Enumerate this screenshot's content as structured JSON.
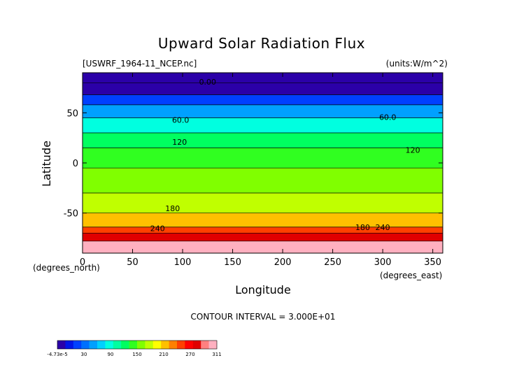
{
  "chart_data": {
    "type": "heatmap",
    "title": "Upward Solar Radiation Flux",
    "file_label": "[USWRF_1964-11_NCEP.nc]",
    "units_label": "(units:W/m^2)",
    "xlabel": "Longitude",
    "ylabel": "Latitude",
    "x_unit_label": "(degrees_east)",
    "y_unit_label": "(degrees_north)",
    "xlim": [
      0,
      360
    ],
    "ylim": [
      -90,
      90
    ],
    "x_ticks": [
      "0",
      "50",
      "100",
      "150",
      "200",
      "250",
      "300",
      "350"
    ],
    "x_tick_values": [
      0,
      50,
      100,
      150,
      200,
      250,
      300,
      350
    ],
    "y_ticks": [
      "50",
      "0",
      "-50"
    ],
    "y_tick_values": [
      50,
      0,
      -50
    ],
    "contour_interval_text": "CONTOUR INTERVAL = 3.000E+01",
    "contour_labels": [
      {
        "text": "0.00",
        "lon": 125,
        "lat": 78
      },
      {
        "text": "60.0",
        "lon": 98,
        "lat": 40
      },
      {
        "text": "60.0",
        "lon": 305,
        "lat": 43
      },
      {
        "text": "120",
        "lon": 97,
        "lat": 18
      },
      {
        "text": "120",
        "lon": 330,
        "lat": 10
      },
      {
        "text": "180",
        "lon": 90,
        "lat": -48
      },
      {
        "text": "240",
        "lon": 75,
        "lat": -68
      },
      {
        "text": "180",
        "lon": 280,
        "lat": -67
      },
      {
        "text": "240",
        "lon": 300,
        "lat": -67
      }
    ],
    "latitude_bands": [
      {
        "lat_min": 80,
        "lat_max": 90,
        "value": 0
      },
      {
        "lat_min": 68,
        "lat_max": 80,
        "value": 15
      },
      {
        "lat_min": 58,
        "lat_max": 68,
        "value": 40
      },
      {
        "lat_min": 45,
        "lat_max": 58,
        "value": 70
      },
      {
        "lat_min": 30,
        "lat_max": 45,
        "value": 95
      },
      {
        "lat_min": 15,
        "lat_max": 30,
        "value": 125
      },
      {
        "lat_min": -5,
        "lat_max": 15,
        "value": 150
      },
      {
        "lat_min": -30,
        "lat_max": -5,
        "value": 160
      },
      {
        "lat_min": -50,
        "lat_max": -30,
        "value": 180
      },
      {
        "lat_min": -64,
        "lat_max": -50,
        "value": 205
      },
      {
        "lat_min": -70,
        "lat_max": -64,
        "value": 245
      },
      {
        "lat_min": -78,
        "lat_max": -70,
        "value": 275
      },
      {
        "lat_min": -90,
        "lat_max": -78,
        "value": 300
      }
    ],
    "colorbar": {
      "tick_labels": [
        "-4.73e-5",
        "30",
        "90",
        "150",
        "210",
        "270",
        "311"
      ],
      "colors": [
        "#2b00a8",
        "#0015e6",
        "#0040ff",
        "#0070ff",
        "#00a0ff",
        "#00d0ff",
        "#00ffe0",
        "#00ffa0",
        "#00ff60",
        "#30ff20",
        "#80ff00",
        "#c0ff00",
        "#ffff00",
        "#ffc000",
        "#ff8000",
        "#ff4000",
        "#ff0000",
        "#e00000",
        "#ff8080",
        "#ffb0c0"
      ]
    }
  }
}
